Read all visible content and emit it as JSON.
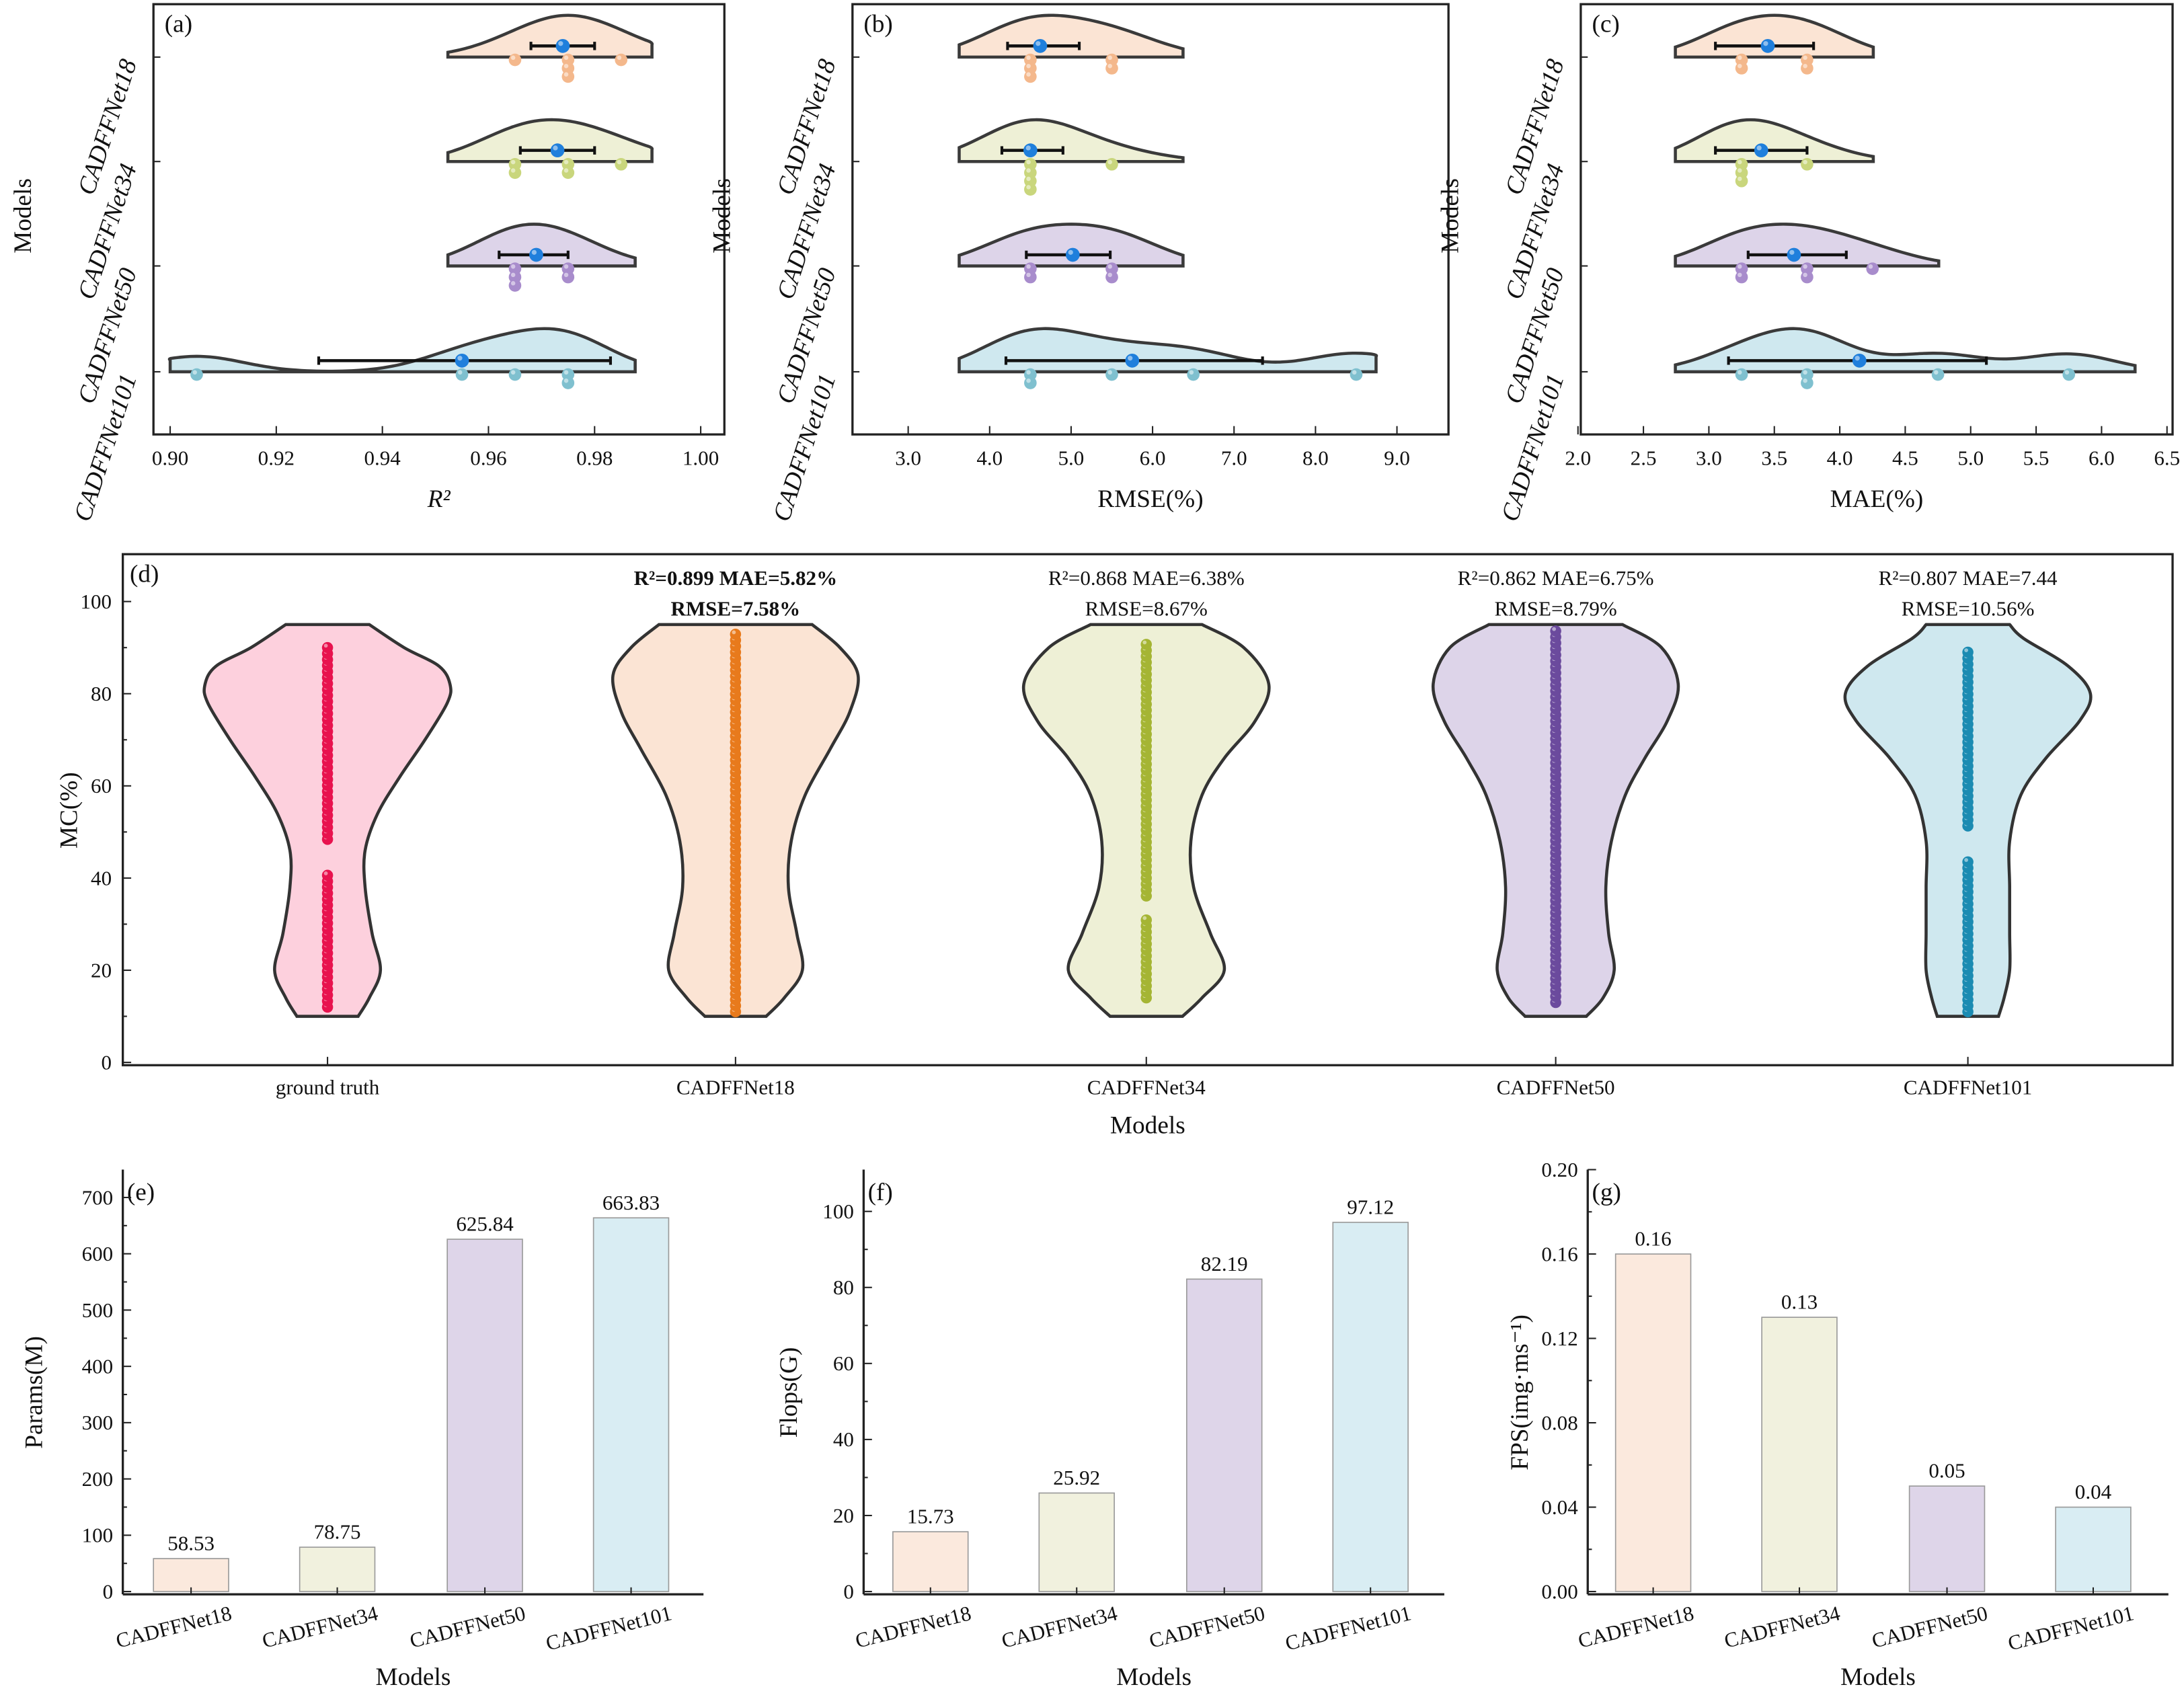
{
  "chart_data": [
    {
      "type": "raincloud",
      "panel": "(a)",
      "xlabel": "R²",
      "ylabel": "Models",
      "xlim": [
        0.89,
        1.005
      ],
      "ticks": [
        0.9,
        0.92,
        0.94,
        0.96,
        0.98,
        1.0
      ],
      "tick_labels": [
        "0.90",
        "0.92",
        "0.94",
        "0.96",
        "0.98",
        "1.00"
      ],
      "series": [
        {
          "name": "CADFFNet18",
          "points": [
            0.965,
            0.975,
            0.975,
            0.975,
            0.985
          ],
          "mean": 0.974,
          "err": [
            0.968,
            0.98
          ]
        },
        {
          "name": "CADFFNet34",
          "points": [
            0.965,
            0.965,
            0.975,
            0.975,
            0.985
          ],
          "mean": 0.973,
          "err": [
            0.966,
            0.98
          ]
        },
        {
          "name": "CADFFNet50",
          "points": [
            0.965,
            0.965,
            0.965,
            0.975,
            0.975
          ],
          "mean": 0.969,
          "err": [
            0.962,
            0.975
          ]
        },
        {
          "name": "CADFFNet101",
          "points": [
            0.905,
            0.955,
            0.965,
            0.975,
            0.975
          ],
          "mean": 0.955,
          "err": [
            0.928,
            0.983
          ]
        }
      ]
    },
    {
      "type": "raincloud",
      "panel": "(b)",
      "xlabel": "RMSE(%)",
      "ylabel": "Models",
      "xlim": [
        2.3,
        9.4
      ],
      "ticks": [
        3,
        4,
        5,
        6,
        7,
        8,
        9
      ],
      "tick_labels": [
        "3.0",
        "4.0",
        "5.0",
        "6.0",
        "7.0",
        "8.0",
        "9.0"
      ],
      "series": [
        {
          "name": "CADFFNet18",
          "points": [
            4.5,
            4.5,
            4.5,
            5.5,
            5.5
          ],
          "mean": 4.62,
          "err": [
            4.22,
            5.1
          ]
        },
        {
          "name": "CADFFNet34",
          "points": [
            4.5,
            4.5,
            4.5,
            4.5,
            5.5
          ],
          "mean": 4.5,
          "err": [
            4.15,
            4.9
          ]
        },
        {
          "name": "CADFFNet50",
          "points": [
            4.5,
            4.5,
            5.5,
            5.5
          ],
          "mean": 5.02,
          "err": [
            4.45,
            5.48
          ]
        },
        {
          "name": "CADFFNet101",
          "points": [
            4.5,
            4.5,
            5.5,
            6.5,
            8.5
          ],
          "mean": 5.75,
          "err": [
            4.2,
            7.35
          ]
        }
      ]
    },
    {
      "type": "raincloud",
      "panel": "(c)",
      "xlabel": "MAE(%)",
      "ylabel": "Models",
      "xlim": [
        2.0,
        6.5
      ],
      "ticks": [
        2.0,
        2.5,
        3.0,
        3.5,
        4.0,
        4.5,
        5.0,
        5.5,
        6.0,
        6.5
      ],
      "tick_labels": [
        "2.0",
        "2.5",
        "3.0",
        "3.5",
        "4.0",
        "4.5",
        "5.0",
        "5.5",
        "6.0",
        "6.5"
      ],
      "series": [
        {
          "name": "CADFFNet18",
          "points": [
            3.25,
            3.25,
            3.75,
            3.75
          ],
          "mean": 3.45,
          "err": [
            3.05,
            3.8
          ]
        },
        {
          "name": "CADFFNet34",
          "points": [
            3.25,
            3.25,
            3.25,
            3.75
          ],
          "mean": 3.4,
          "err": [
            3.05,
            3.75
          ]
        },
        {
          "name": "CADFFNet50",
          "points": [
            3.25,
            3.25,
            3.75,
            3.75,
            4.25
          ],
          "mean": 3.65,
          "err": [
            3.3,
            4.05
          ]
        },
        {
          "name": "CADFFNet101",
          "points": [
            3.25,
            3.75,
            3.75,
            4.75,
            5.75
          ],
          "mean": 4.15,
          "err": [
            3.15,
            5.12
          ]
        }
      ]
    },
    {
      "type": "violin",
      "panel": "(d)",
      "xlabel": "Models",
      "ylabel": "MC(%)",
      "ylim": [
        0,
        110
      ],
      "ticks": [
        0,
        20,
        40,
        60,
        80,
        100
      ],
      "tick_labels": [
        "0",
        "20",
        "40",
        "60",
        "80",
        "100"
      ],
      "series": [
        {
          "name": "ground truth",
          "range": [
            12,
            91
          ],
          "gap": [
            41,
            48
          ],
          "annot1": "",
          "annot2": ""
        },
        {
          "name": "CADFFNet18",
          "range": [
            11,
            93
          ],
          "gap": null,
          "annot1": "R²=0.899  MAE=5.82%",
          "annot2": "RMSE=7.58%"
        },
        {
          "name": "CADFFNet34",
          "range": [
            14,
            91
          ],
          "gap": [
            31,
            36
          ],
          "annot1": "R²=0.868 MAE=6.38%",
          "annot2": "RMSE=8.67%"
        },
        {
          "name": "CADFFNet50",
          "range": [
            13,
            94
          ],
          "gap": null,
          "annot1": "R²=0.862 MAE=6.75%",
          "annot2": "RMSE=8.79%"
        },
        {
          "name": "CADFFNet101",
          "range": [
            11,
            89
          ],
          "gap": [
            44,
            50
          ],
          "annot1": "R²=0.807 MAE=7.44",
          "annot2": "RMSE=10.56%"
        }
      ]
    },
    {
      "type": "bar",
      "panel": "(e)",
      "xlabel": "Models",
      "ylabel": "Params(M)",
      "ylim": [
        0,
        720
      ],
      "ticks": [
        0,
        100,
        200,
        300,
        400,
        500,
        600,
        700
      ],
      "tick_labels": [
        "0",
        "100",
        "200",
        "300",
        "400",
        "500",
        "600",
        "700"
      ],
      "categories": [
        "CADFFNet18",
        "CADFFNet34",
        "CADFFNet50",
        "CADFFNet101"
      ],
      "values": [
        58.53,
        78.75,
        625.84,
        663.83
      ],
      "value_labels": [
        "58.53",
        "78.75",
        "625.84",
        "663.83"
      ]
    },
    {
      "type": "bar",
      "panel": "(f)",
      "xlabel": "Models",
      "ylabel": "Flops(G)",
      "ylim": [
        0,
        110
      ],
      "ticks": [
        0,
        20,
        40,
        60,
        80,
        100
      ],
      "tick_labels": [
        "0",
        "20",
        "40",
        "60",
        "80",
        "100"
      ],
      "categories": [
        "CADFFNet18",
        "CADFFNet34",
        "CADFFNet50",
        "CADFFNet101"
      ],
      "values": [
        15.73,
        25.92,
        82.19,
        97.12
      ],
      "value_labels": [
        "15.73",
        "25.92",
        "82.19",
        "97.12"
      ]
    },
    {
      "type": "bar",
      "panel": "(g)",
      "xlabel": "Models",
      "ylabel": "FPS(img·ms⁻¹)",
      "ylim": [
        0,
        0.2
      ],
      "ticks": [
        0,
        0.04,
        0.08,
        0.12,
        0.16,
        0.2
      ],
      "tick_labels": [
        "0.00",
        "0.04",
        "0.08",
        "0.12",
        "0.16",
        "0.20"
      ],
      "categories": [
        "CADFFNet18",
        "CADFFNet34",
        "CADFFNet50",
        "CADFFNet101"
      ],
      "values": [
        0.16,
        0.13,
        0.05,
        0.04
      ],
      "value_labels": [
        "0.16",
        "0.13",
        "0.05",
        "0.04"
      ]
    }
  ],
  "colors": {
    "fill": [
      "#fbe4d4",
      "#eef0d6",
      "#ddd4e9",
      "#cfe8ef"
    ],
    "dots": [
      "#f4b88c",
      "#c9d67c",
      "#a88ccc",
      "#7fc0cf"
    ],
    "gt_fill": "#fdd0dd",
    "gt_dot": "#e8124e",
    "violin_dots": [
      "#e87a1c",
      "#a5b534",
      "#6b4a9d",
      "#1b8bb2"
    ],
    "mean": "#1f7fdc",
    "bar": [
      "#fbe9dd",
      "#f1f1de",
      "#ded5e9",
      "#d9edf3"
    ]
  }
}
